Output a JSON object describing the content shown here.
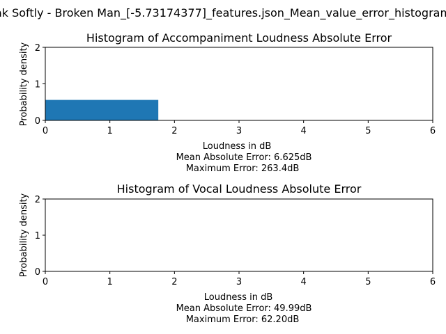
{
  "figure": {
    "suptitle": "ak Softly - Broken Man_[-5.73174377]_features.json_Mean_value_error_histogram"
  },
  "colors": {
    "bar": "#1f77b4",
    "axis": "#000000"
  },
  "chart_data": [
    {
      "type": "bar",
      "title": "Histogram of Accompaniment Loudness Absolute Error",
      "xlabel": "Loudness in dB",
      "ylabel": "Probability density",
      "notes": [
        "Mean Absolute Error: 6.625dB",
        "Maximum Error: 263.4dB"
      ],
      "xlim": [
        0,
        6
      ],
      "ylim": [
        0,
        2
      ],
      "xticks": [
        "0",
        "1",
        "2",
        "3",
        "4",
        "5",
        "6"
      ],
      "yticks": [
        "0",
        "1",
        "2"
      ],
      "grid": false,
      "bins": [
        {
          "x0": 0,
          "x1": 1.75,
          "value": 0.56
        }
      ]
    },
    {
      "type": "bar",
      "title": "Histogram of Vocal Loudness Absolute Error",
      "xlabel": "Loudness in dB",
      "ylabel": "Probability density",
      "notes": [
        "Mean Absolute Error: 49.99dB",
        "Maximum Error: 62.20dB"
      ],
      "xlim": [
        0,
        6
      ],
      "ylim": [
        0,
        2
      ],
      "xticks": [
        "0",
        "1",
        "2",
        "3",
        "4",
        "5",
        "6"
      ],
      "yticks": [
        "0",
        "1",
        "2"
      ],
      "grid": false,
      "bins": []
    }
  ]
}
